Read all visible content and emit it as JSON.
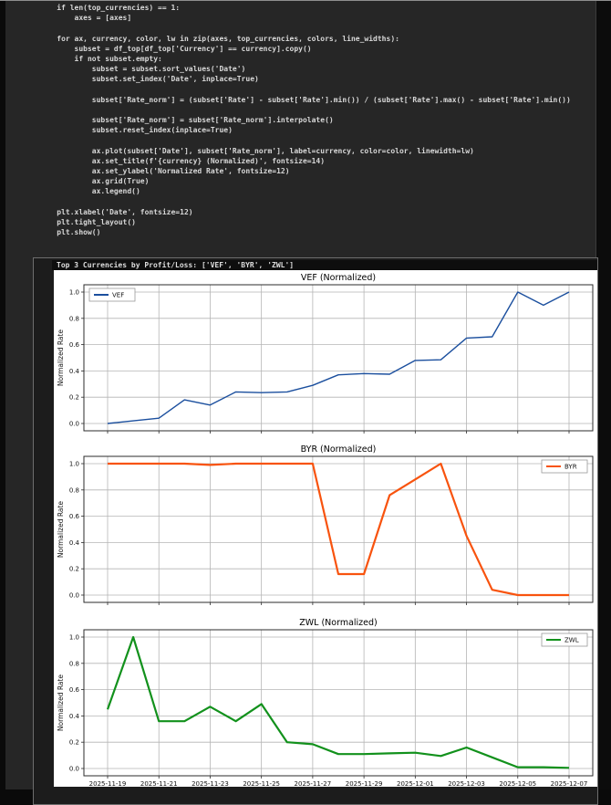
{
  "code_cell": {
    "language": "python",
    "lines": [
      "    if len(top_currencies) == 1:",
      "        axes = [axes]",
      "",
      "    for ax, currency, color, lw in zip(axes, top_currencies, colors, line_widths):",
      "        subset = df_top[df_top['Currency'] == currency].copy()",
      "        if not subset.empty:",
      "            subset = subset.sort_values('Date')",
      "            subset.set_index('Date', inplace=True)",
      "",
      "            subset['Rate_norm'] = (subset['Rate'] - subset['Rate'].min()) / (subset['Rate'].max() - subset['Rate'].min())",
      "",
      "            subset['Rate_norm'] = subset['Rate_norm'].interpolate()",
      "            subset.reset_index(inplace=True)",
      "",
      "            ax.plot(subset['Date'], subset['Rate_norm'], label=currency, color=color, linewidth=lw)",
      "            ax.set_title(f'{currency} (Normalized)', fontsize=14)",
      "            ax.set_ylabel('Normalized Rate', fontsize=12)",
      "            ax.grid(True)",
      "            ax.legend()",
      "",
      "    plt.xlabel('Date', fontsize=12)",
      "    plt.tight_layout()",
      "    plt.show()"
    ]
  },
  "output": {
    "text": "Top 3 Currencies by Profit/Loss: ['VEF', 'BYR', 'ZWL']"
  },
  "chart_data": [
    {
      "type": "line",
      "title": "VEF (Normalized)",
      "ylabel": "Normalized Rate",
      "legend": "VEF",
      "legend_position": "upper-left",
      "color": "#1b4f9e",
      "line_width": 1.4,
      "grid": true,
      "ylim": [
        -0.05,
        1.05
      ],
      "yticks": [
        "0.0",
        "0.2",
        "0.4",
        "0.6",
        "0.8",
        "1.0"
      ],
      "x": [
        "2025-11-19",
        "2025-11-20",
        "2025-11-21",
        "2025-11-22",
        "2025-11-23",
        "2025-11-24",
        "2025-11-25",
        "2025-11-26",
        "2025-11-27",
        "2025-11-28",
        "2025-11-29",
        "2025-11-30",
        "2025-12-01",
        "2025-12-02",
        "2025-12-03",
        "2025-12-04",
        "2025-12-05",
        "2025-12-06",
        "2025-12-07"
      ],
      "values": [
        0.0,
        0.02,
        0.04,
        0.18,
        0.14,
        0.24,
        0.235,
        0.24,
        0.29,
        0.37,
        0.38,
        0.375,
        0.48,
        0.485,
        0.65,
        0.66,
        1.0,
        0.9,
        1.0
      ],
      "show_x_tick_labels": false
    },
    {
      "type": "line",
      "title": "BYR (Normalized)",
      "ylabel": "Normalized Rate",
      "legend": "BYR",
      "legend_position": "upper-right",
      "color": "#f8530e",
      "line_width": 2.2,
      "grid": true,
      "ylim": [
        -0.05,
        1.05
      ],
      "yticks": [
        "0.0",
        "0.2",
        "0.4",
        "0.6",
        "0.8",
        "1.0"
      ],
      "x": [
        "2025-11-19",
        "2025-11-20",
        "2025-11-21",
        "2025-11-22",
        "2025-11-23",
        "2025-11-24",
        "2025-11-25",
        "2025-11-26",
        "2025-11-27",
        "2025-11-28",
        "2025-11-29",
        "2025-11-30",
        "2025-12-01",
        "2025-12-02",
        "2025-12-03",
        "2025-12-04",
        "2025-12-05",
        "2025-12-06",
        "2025-12-07"
      ],
      "values": [
        1.0,
        1.0,
        1.0,
        1.0,
        0.99,
        1.0,
        1.0,
        1.0,
        1.0,
        0.16,
        0.16,
        0.76,
        0.88,
        1.0,
        0.45,
        0.04,
        0.0,
        0.0,
        0.0
      ],
      "show_x_tick_labels": false
    },
    {
      "type": "line",
      "title": "ZWL (Normalized)",
      "ylabel": "Normalized Rate",
      "legend": "ZWL",
      "legend_position": "upper-right",
      "color": "#12911c",
      "line_width": 2.2,
      "grid": true,
      "ylim": [
        -0.05,
        1.05
      ],
      "yticks": [
        "0.0",
        "0.2",
        "0.4",
        "0.6",
        "0.8",
        "1.0"
      ],
      "x": [
        "2025-11-19",
        "2025-11-20",
        "2025-11-21",
        "2025-11-22",
        "2025-11-23",
        "2025-11-24",
        "2025-11-25",
        "2025-11-26",
        "2025-11-27",
        "2025-11-28",
        "2025-11-29",
        "2025-11-30",
        "2025-12-01",
        "2025-12-02",
        "2025-12-03",
        "2025-12-04",
        "2025-12-05",
        "2025-12-06",
        "2025-12-07"
      ],
      "values": [
        0.45,
        1.0,
        0.36,
        0.36,
        0.47,
        0.36,
        0.49,
        0.2,
        0.185,
        0.11,
        0.11,
        0.115,
        0.12,
        0.095,
        0.16,
        0.085,
        0.01,
        0.01,
        0.005
      ],
      "show_x_tick_labels": true,
      "x_tick_labels": [
        "2025-11-19",
        "2025-11-21",
        "2025-11-23",
        "2025-11-25",
        "2025-11-27",
        "2025-11-29",
        "2025-12-01",
        "2025-12-03",
        "2025-12-05",
        "2025-12-07"
      ]
    }
  ],
  "chart_colors": {
    "grid": "#b5b5b5",
    "axis_border": "#2b2b2b",
    "figure_bg": "#ffffff",
    "tick_text": "#111111"
  }
}
